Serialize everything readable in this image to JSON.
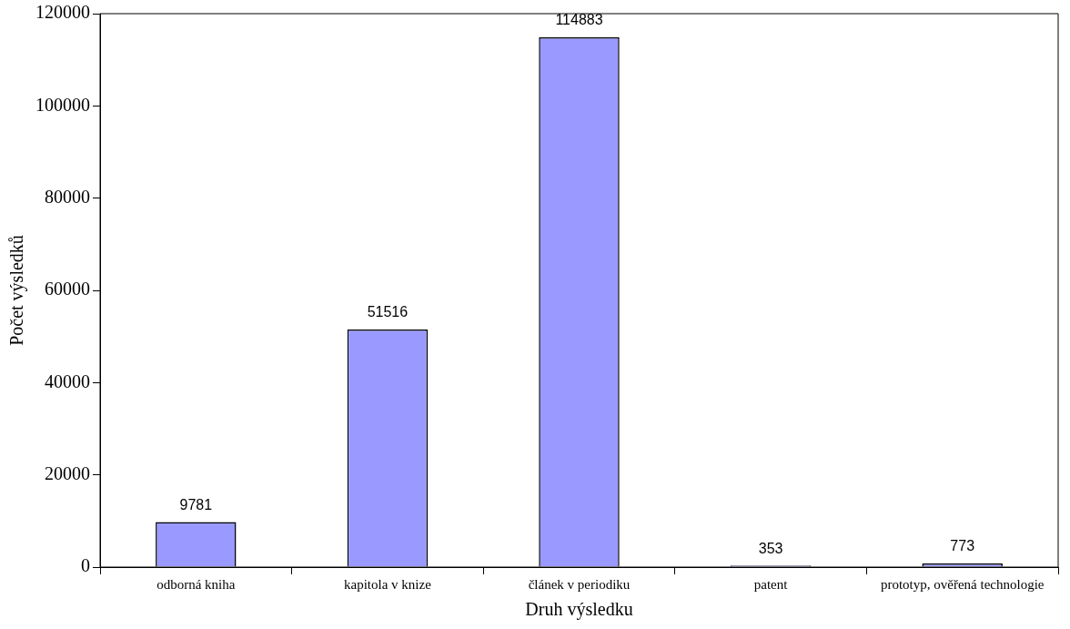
{
  "chart_data": {
    "type": "bar",
    "xlabel": "Druh výsledku",
    "ylabel": "Počet výsledků",
    "categories": [
      "odborná kniha",
      "kapitola v knize",
      "článek v periodiku",
      "patent",
      "prototyp, ověřená technologie"
    ],
    "values": [
      9781,
      51516,
      114883,
      353,
      773
    ],
    "color": "#9999ff",
    "ylim": [
      0,
      120000
    ],
    "yticks": [
      0,
      20000,
      40000,
      60000,
      80000,
      100000,
      120000
    ],
    "grid": false,
    "legend": false,
    "data_labels": true
  }
}
